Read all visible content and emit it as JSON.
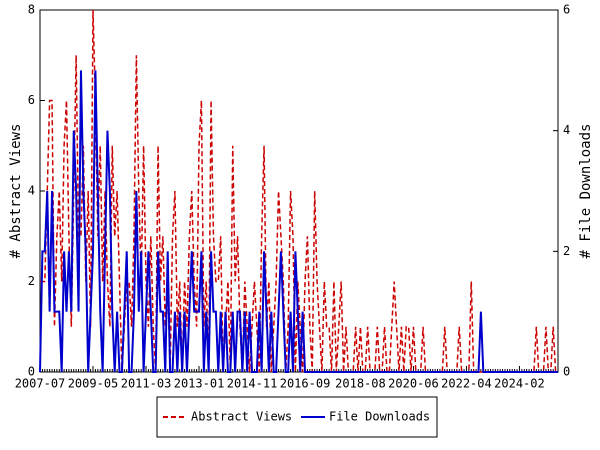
{
  "chart_data": {
    "type": "line",
    "categories": [
      "2007-07",
      null,
      null,
      null,
      null,
      null,
      null,
      null,
      null,
      null,
      null,
      null,
      null,
      null,
      null,
      null,
      null,
      null,
      null,
      null,
      null,
      null,
      "2009-05",
      null,
      null,
      null,
      null,
      null,
      null,
      null,
      null,
      null,
      null,
      null,
      null,
      null,
      null,
      null,
      null,
      null,
      null,
      null,
      null,
      null,
      "2011-03",
      null,
      null,
      null,
      null,
      null,
      null,
      null,
      null,
      null,
      null,
      null,
      null,
      null,
      null,
      null,
      null,
      null,
      null,
      null,
      null,
      null,
      "2013-01",
      null,
      null,
      null,
      null,
      null,
      null,
      null,
      null,
      null,
      null,
      null,
      null,
      null,
      null,
      null,
      null,
      null,
      null,
      null,
      null,
      null,
      "2014-11",
      null,
      null,
      null,
      null,
      null,
      null,
      null,
      null,
      null,
      null,
      null,
      null,
      null,
      null,
      null,
      null,
      null,
      null,
      null,
      null,
      null,
      "2016-09",
      null,
      null,
      null,
      null,
      null,
      null,
      null,
      null,
      null,
      null,
      null,
      null,
      null,
      null,
      null,
      null,
      null,
      null,
      null,
      null,
      null,
      null,
      "2018-08",
      null,
      null,
      null,
      null,
      null,
      null,
      null,
      null,
      null,
      null,
      null,
      null,
      null,
      null,
      null,
      null,
      null,
      null,
      null,
      null,
      null,
      "2020-06",
      null,
      null,
      null,
      null,
      null,
      null,
      null,
      null,
      null,
      null,
      null,
      null,
      null,
      null,
      null,
      null,
      null,
      null,
      null,
      null,
      null,
      "2022-04",
      null,
      null,
      null,
      null,
      null,
      null,
      null,
      null,
      null,
      null,
      null,
      null,
      null,
      null,
      null,
      null,
      null,
      null,
      null,
      null,
      null,
      "2024-02",
      null,
      null,
      null,
      null,
      null,
      null,
      null,
      null,
      null,
      null,
      null,
      null,
      null,
      null,
      null,
      null
    ],
    "series": [
      {
        "name": "Abstract Views",
        "color": "#cc0000",
        "dash": true,
        "axis": "y",
        "values": [
          2,
          2,
          2,
          4,
          6,
          6,
          1,
          3,
          4,
          2,
          5,
          6,
          3,
          1,
          4,
          7,
          3,
          3,
          5,
          2,
          4,
          1,
          8,
          6,
          3,
          5,
          2,
          4,
          2,
          1,
          5,
          3,
          4,
          2,
          0,
          1,
          2,
          2,
          1,
          3,
          7,
          4,
          2,
          5,
          2,
          1,
          3,
          1,
          0,
          5,
          2,
          3,
          1,
          2,
          0,
          3,
          4,
          1,
          2,
          0,
          2,
          1,
          3,
          4,
          2,
          1,
          5,
          6,
          1,
          2,
          0,
          6,
          3,
          2,
          2,
          3,
          0,
          1,
          2,
          0,
          5,
          2,
          3,
          1,
          0,
          2,
          1,
          0,
          1,
          2,
          1,
          0,
          3,
          5,
          1,
          2,
          0,
          1,
          2,
          4,
          3,
          2,
          0,
          1,
          4,
          3,
          0,
          2,
          1,
          0,
          2,
          3,
          1,
          0,
          4,
          2,
          1,
          0,
          2,
          1,
          1,
          0,
          2,
          0,
          1,
          2,
          0,
          1,
          0,
          0,
          0,
          1,
          0,
          1,
          0,
          0,
          1,
          0,
          0,
          0,
          1,
          0,
          0,
          1,
          0,
          0,
          1,
          2,
          1,
          0,
          1,
          0,
          1,
          1,
          0,
          1,
          0,
          0,
          0,
          1,
          0,
          0,
          0,
          0,
          0,
          0,
          0,
          0,
          1,
          0,
          0,
          0,
          0,
          0,
          1,
          0,
          0,
          0,
          0,
          2,
          0,
          0,
          0,
          0,
          0,
          0,
          0,
          0,
          0,
          0,
          0,
          0,
          0,
          0,
          0,
          0,
          0,
          0,
          0,
          0,
          0,
          0,
          0,
          0,
          0,
          0,
          1,
          0,
          0,
          0,
          1,
          0,
          0,
          1,
          0,
          0
        ]
      },
      {
        "name": "File Downloads",
        "color": "#0000cc",
        "dash": false,
        "axis": "y2",
        "values": [
          0,
          2,
          2,
          3,
          1,
          3,
          1,
          1,
          1,
          0,
          2,
          1,
          2,
          1,
          4,
          3,
          1,
          5,
          3,
          2,
          0,
          1,
          2,
          5,
          3,
          1,
          0,
          2,
          4,
          3,
          1,
          0,
          1,
          0,
          0,
          1,
          2,
          0,
          0,
          1,
          3,
          1,
          2,
          0,
          1,
          2,
          1,
          0,
          0,
          2,
          1,
          1,
          0,
          2,
          0,
          0,
          1,
          0,
          1,
          0,
          1,
          0,
          1,
          2,
          1,
          1,
          1,
          2,
          0,
          1,
          0,
          2,
          1,
          1,
          0,
          1,
          0,
          1,
          0,
          0,
          1,
          0,
          1,
          1,
          0,
          1,
          0,
          1,
          0,
          0,
          0,
          1,
          0,
          2,
          1,
          0,
          1,
          0,
          0,
          1,
          2,
          1,
          0,
          0,
          1,
          0,
          2,
          1,
          0,
          1,
          0,
          0,
          0,
          0,
          0,
          0,
          0,
          0,
          0,
          0,
          0,
          0,
          0,
          0,
          0,
          0,
          0,
          0,
          0,
          0,
          0,
          0,
          0,
          0,
          0,
          0,
          0,
          0,
          0,
          0,
          0,
          0,
          0,
          0,
          0,
          0,
          0,
          0,
          0,
          0,
          0,
          0,
          0,
          0,
          0,
          0,
          0,
          0,
          0,
          0,
          0,
          0,
          0,
          0,
          0,
          0,
          0,
          0,
          0,
          0,
          0,
          0,
          0,
          0,
          0,
          0,
          0,
          0,
          0,
          0,
          0,
          0,
          0,
          1,
          0,
          0,
          0,
          0,
          0,
          0,
          0,
          0,
          0,
          0,
          0,
          0,
          0,
          0,
          0,
          0,
          0,
          0,
          0,
          0,
          0,
          0,
          0,
          0,
          0,
          0,
          0,
          0,
          0,
          0,
          0,
          0
        ]
      }
    ],
    "ylabel": "# Abstract Views",
    "y2label": "# File Downloads",
    "ylim": [
      0,
      8
    ],
    "yticks": [
      0,
      2,
      4,
      6,
      8
    ],
    "y2lim": [
      0,
      6
    ],
    "y2ticks": [
      0,
      2,
      4,
      6
    ]
  }
}
